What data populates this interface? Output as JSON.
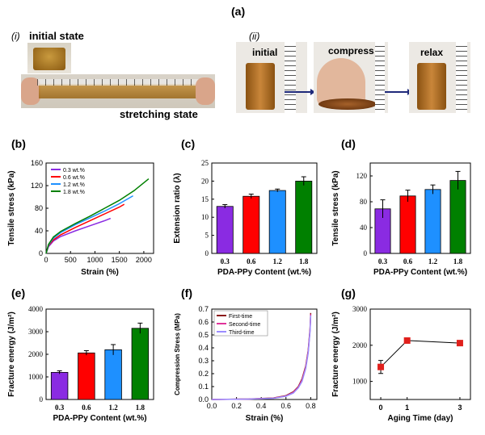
{
  "panel_labels": {
    "a": "(a)",
    "b": "(b)",
    "c": "(c)",
    "d": "(d)",
    "e": "(e)",
    "f": "(f)",
    "g": "(g)"
  },
  "photos": {
    "i_label": "(i)",
    "initial_state": "initial state",
    "stretching_state": "stretching state",
    "ii_label": "(ii)",
    "initial": "initial",
    "compress": "compress",
    "relax": "relax"
  },
  "colors": {
    "purple": "#8a2be2",
    "red": "#ff0000",
    "blue": "#1e90ff",
    "green": "#008000",
    "pink": "#e0339a",
    "lav": "#9b8cff",
    "darkred": "#8b1a1a",
    "marker": "#e0201c"
  },
  "chart_data": [
    {
      "id": "b",
      "type": "line",
      "xlabel": "Strain (%)",
      "ylabel": "Tensile stress (kPa)",
      "xlim": [
        0,
        2200
      ],
      "ylim": [
        0,
        160
      ],
      "xticks": [
        "0",
        "500",
        "1000",
        "1500",
        "2000"
      ],
      "yticks": [
        "0",
        "40",
        "80",
        "120",
        "160"
      ],
      "legend_position": "top-left",
      "series": [
        {
          "name": "0.3 wt.%",
          "color": "#8a2be2",
          "x": [
            0,
            50,
            150,
            300,
            600,
            900,
            1200,
            1320
          ],
          "y": [
            0,
            12,
            22,
            30,
            40,
            49,
            58,
            62
          ]
        },
        {
          "name": "0.6 wt.%",
          "color": "#ff0000",
          "x": [
            0,
            50,
            150,
            300,
            600,
            900,
            1200,
            1500,
            1600
          ],
          "y": [
            0,
            14,
            24,
            33,
            46,
            58,
            70,
            82,
            87
          ]
        },
        {
          "name": "1.2 wt.%",
          "color": "#1e90ff",
          "x": [
            0,
            50,
            150,
            300,
            600,
            900,
            1200,
            1500,
            1780
          ],
          "y": [
            0,
            15,
            27,
            37,
            51,
            63,
            75,
            88,
            102
          ]
        },
        {
          "name": "1.8 wt.%",
          "color": "#008000",
          "x": [
            0,
            50,
            150,
            300,
            600,
            900,
            1200,
            1500,
            1800,
            2100
          ],
          "y": [
            0,
            16,
            29,
            39,
            53,
            66,
            80,
            94,
            111,
            132
          ]
        }
      ]
    },
    {
      "id": "c",
      "type": "bar",
      "xlabel": "PDA-PPy Content (wt.%)",
      "ylabel": "Extension ratio (λ)",
      "ylim": [
        0,
        25
      ],
      "yticks": [
        "0",
        "5",
        "10",
        "15",
        "20",
        "25"
      ],
      "categories": [
        "0.3",
        "0.6",
        "1.2",
        "1.8"
      ],
      "values": [
        13,
        15.8,
        17.4,
        20
      ],
      "errors": [
        0.5,
        0.6,
        0.4,
        1.2
      ],
      "colors": [
        "#8a2be2",
        "#ff0000",
        "#1e90ff",
        "#008000"
      ]
    },
    {
      "id": "d",
      "type": "bar",
      "xlabel": "PDA-PPy Content (wt.%)",
      "ylabel": "Tensile stress (kPa)",
      "ylim": [
        0,
        140
      ],
      "yticks": [
        "0",
        "40",
        "80",
        "120"
      ],
      "categories": [
        "0.3",
        "0.6",
        "1.2",
        "1.8"
      ],
      "values": [
        69,
        89,
        99,
        113
      ],
      "errors": [
        14,
        9,
        7,
        14
      ],
      "colors": [
        "#8a2be2",
        "#ff0000",
        "#1e90ff",
        "#008000"
      ]
    },
    {
      "id": "e",
      "type": "bar",
      "xlabel": "PDA-PPy Content (wt.%)",
      "ylabel": "Fracture energy (J/m²)",
      "ylim": [
        0,
        4000
      ],
      "yticks": [
        "0",
        "1000",
        "2000",
        "3000",
        "4000"
      ],
      "categories": [
        "0.3",
        "0.6",
        "1.2",
        "1.8"
      ],
      "values": [
        1200,
        2060,
        2200,
        3150
      ],
      "errors": [
        70,
        100,
        230,
        230
      ],
      "colors": [
        "#8a2be2",
        "#ff0000",
        "#1e90ff",
        "#008000"
      ]
    },
    {
      "id": "f",
      "type": "line",
      "xlabel": "Strain (%)",
      "ylabel": "Compression Stress (MPa)",
      "xlim": [
        0,
        0.85
      ],
      "ylim": [
        0,
        0.7
      ],
      "xticks": [
        "0.0",
        "0.2",
        "0.4",
        "0.6",
        "0.8"
      ],
      "yticks": [
        "0.0",
        "0.1",
        "0.2",
        "0.3",
        "0.4",
        "0.5",
        "0.6",
        "0.7"
      ],
      "legend_position": "top-left",
      "series": [
        {
          "name": "First-time",
          "color": "#8b1a1a",
          "x": [
            0,
            0.3,
            0.5,
            0.6,
            0.66,
            0.7,
            0.73,
            0.76,
            0.78,
            0.795,
            0.8
          ],
          "y": [
            0,
            0.004,
            0.012,
            0.03,
            0.06,
            0.1,
            0.16,
            0.26,
            0.38,
            0.55,
            0.67
          ]
        },
        {
          "name": "Second-time",
          "color": "#e0339a",
          "x": [
            0,
            0.3,
            0.5,
            0.6,
            0.66,
            0.7,
            0.73,
            0.76,
            0.78,
            0.795,
            0.8
          ],
          "y": [
            0,
            0.003,
            0.01,
            0.027,
            0.055,
            0.095,
            0.15,
            0.25,
            0.37,
            0.54,
            0.66
          ]
        },
        {
          "name": "Third-time",
          "color": "#9b8cff",
          "x": [
            0,
            0.3,
            0.5,
            0.6,
            0.66,
            0.7,
            0.73,
            0.76,
            0.78,
            0.795,
            0.8
          ],
          "y": [
            0,
            0.003,
            0.009,
            0.025,
            0.05,
            0.09,
            0.14,
            0.24,
            0.36,
            0.53,
            0.65
          ]
        }
      ]
    },
    {
      "id": "g",
      "type": "scatter",
      "xlabel": "Aging Time (day)",
      "ylabel": "Fracture energy (J/m²)",
      "xlim": [
        -0.4,
        3.4
      ],
      "ylim": [
        500,
        3000
      ],
      "xticks": [
        "0",
        "1",
        "3"
      ],
      "xtick_values": [
        0,
        1,
        3
      ],
      "yticks": [
        "1000",
        "2000",
        "3000"
      ],
      "x": [
        0,
        1,
        3
      ],
      "y": [
        1400,
        2130,
        2060
      ],
      "errors": [
        180,
        60,
        70
      ]
    }
  ]
}
